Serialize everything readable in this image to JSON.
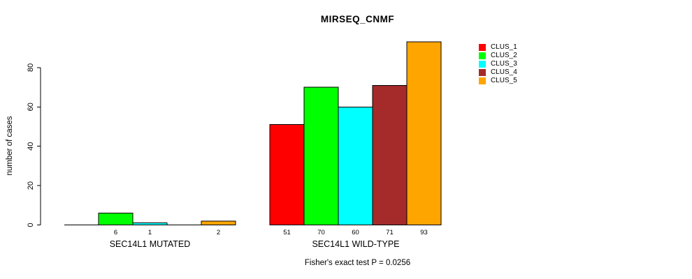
{
  "title": "MIRSEQ_CNMF",
  "y_axis": {
    "label": "number of cases",
    "tick_labels": [
      "0",
      "20",
      "40",
      "60",
      "80"
    ]
  },
  "footer_note": "Fisher's exact test P = 0.0256",
  "legend": {
    "items": [
      {
        "label": "CLUS_1",
        "color": "#FF0000"
      },
      {
        "label": "CLUS_2",
        "color": "#00FF00"
      },
      {
        "label": "CLUS_3",
        "color": "#00FFFF"
      },
      {
        "label": "CLUS_4",
        "color": "#A52A2A"
      },
      {
        "label": "CLUS_5",
        "color": "#FFA500"
      }
    ]
  },
  "chart_data": {
    "type": "bar",
    "title": "MIRSEQ_CNMF",
    "xlabel": "",
    "ylabel": "number of cases",
    "ylim": [
      0,
      93
    ],
    "yticks": [
      0,
      20,
      40,
      60,
      80
    ],
    "grid": false,
    "legend_position": "right-outside-top",
    "categories": [
      "SEC14L1 MUTATED",
      "SEC14L1 WILD-TYPE"
    ],
    "series": [
      {
        "name": "CLUS_1",
        "color": "#FF0000",
        "values": [
          0,
          51
        ]
      },
      {
        "name": "CLUS_2",
        "color": "#00FF00",
        "values": [
          6,
          70
        ]
      },
      {
        "name": "CLUS_3",
        "color": "#00FFFF",
        "values": [
          1,
          60
        ]
      },
      {
        "name": "CLUS_4",
        "color": "#A52A2A",
        "values": [
          0,
          71
        ]
      },
      {
        "name": "CLUS_5",
        "color": "#FFA500",
        "values": [
          2,
          93
        ]
      }
    ],
    "groups": [
      {
        "label": "SEC14L1 MUTATED",
        "bar_value_labels": [
          "",
          "6",
          "1",
          "",
          "2"
        ]
      },
      {
        "label": "SEC14L1 WILD-TYPE",
        "bar_value_labels": [
          "51",
          "70",
          "60",
          "71",
          "93"
        ]
      }
    ],
    "annotation": "Fisher's exact test P = 0.0256"
  }
}
